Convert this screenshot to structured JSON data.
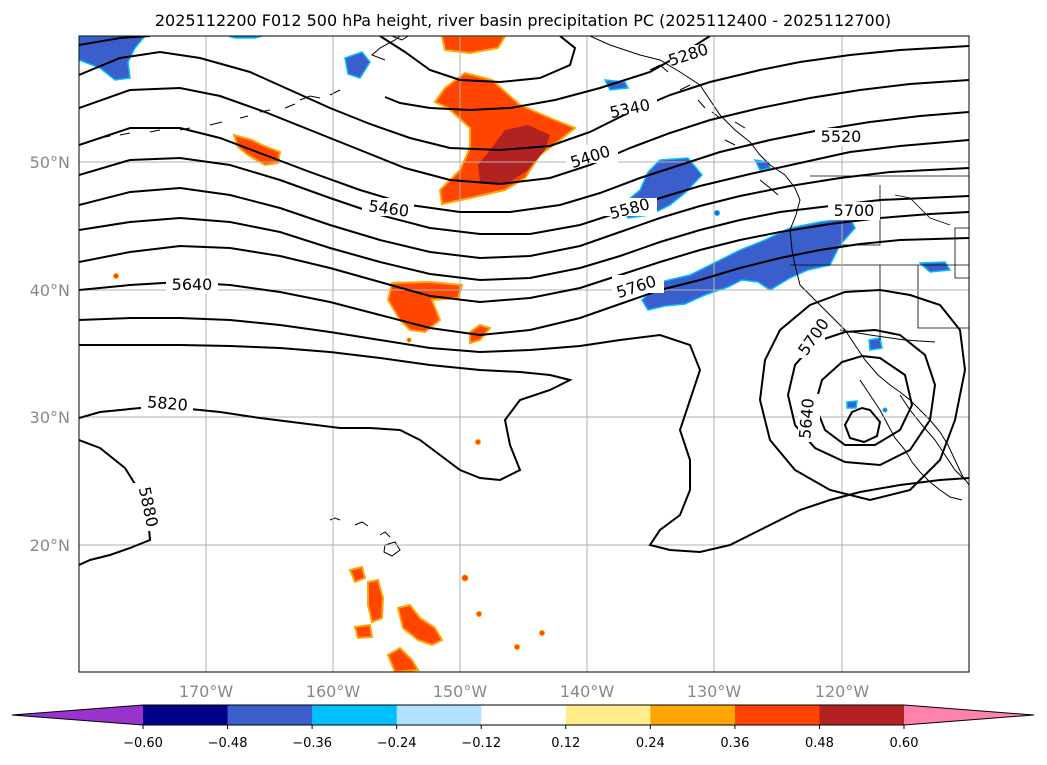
{
  "title": "2025112200 F012 500 hPa height, river basin precipitation PC (2025112400 - 2025112700)",
  "lat_labels": [
    "50°N",
    "40°N",
    "30°N",
    "20°N"
  ],
  "lon_labels": [
    "170°W",
    "160°W",
    "150°W",
    "140°W",
    "130°W",
    "120°W"
  ],
  "contour_labels": [
    "5280",
    "5340",
    "5400",
    "5460",
    "5520",
    "5580",
    "5640",
    "5700",
    "5760",
    "5820",
    "5880",
    "5700",
    "5640"
  ],
  "colorbar": {
    "tick_labels": [
      "−0.60",
      "−0.48",
      "−0.36",
      "−0.24",
      "−0.12",
      "0.12",
      "0.24",
      "0.36",
      "0.48",
      "0.60"
    ],
    "colors": [
      "#9a32cd",
      "#00008b",
      "#3a5fcd",
      "#00bfff",
      "#b0e2ff",
      "#ffffff",
      "#ffec8b",
      "#ffa500",
      "#ff4500",
      "#b22222",
      "#ff82ab"
    ]
  },
  "colors": {
    "positive_anomaly": "#ff4500",
    "strong_positive": "#b22222",
    "negative_anomaly": "#3a5fcd",
    "light_negative": "#00bfff",
    "grid": "#b0b0b0"
  }
}
